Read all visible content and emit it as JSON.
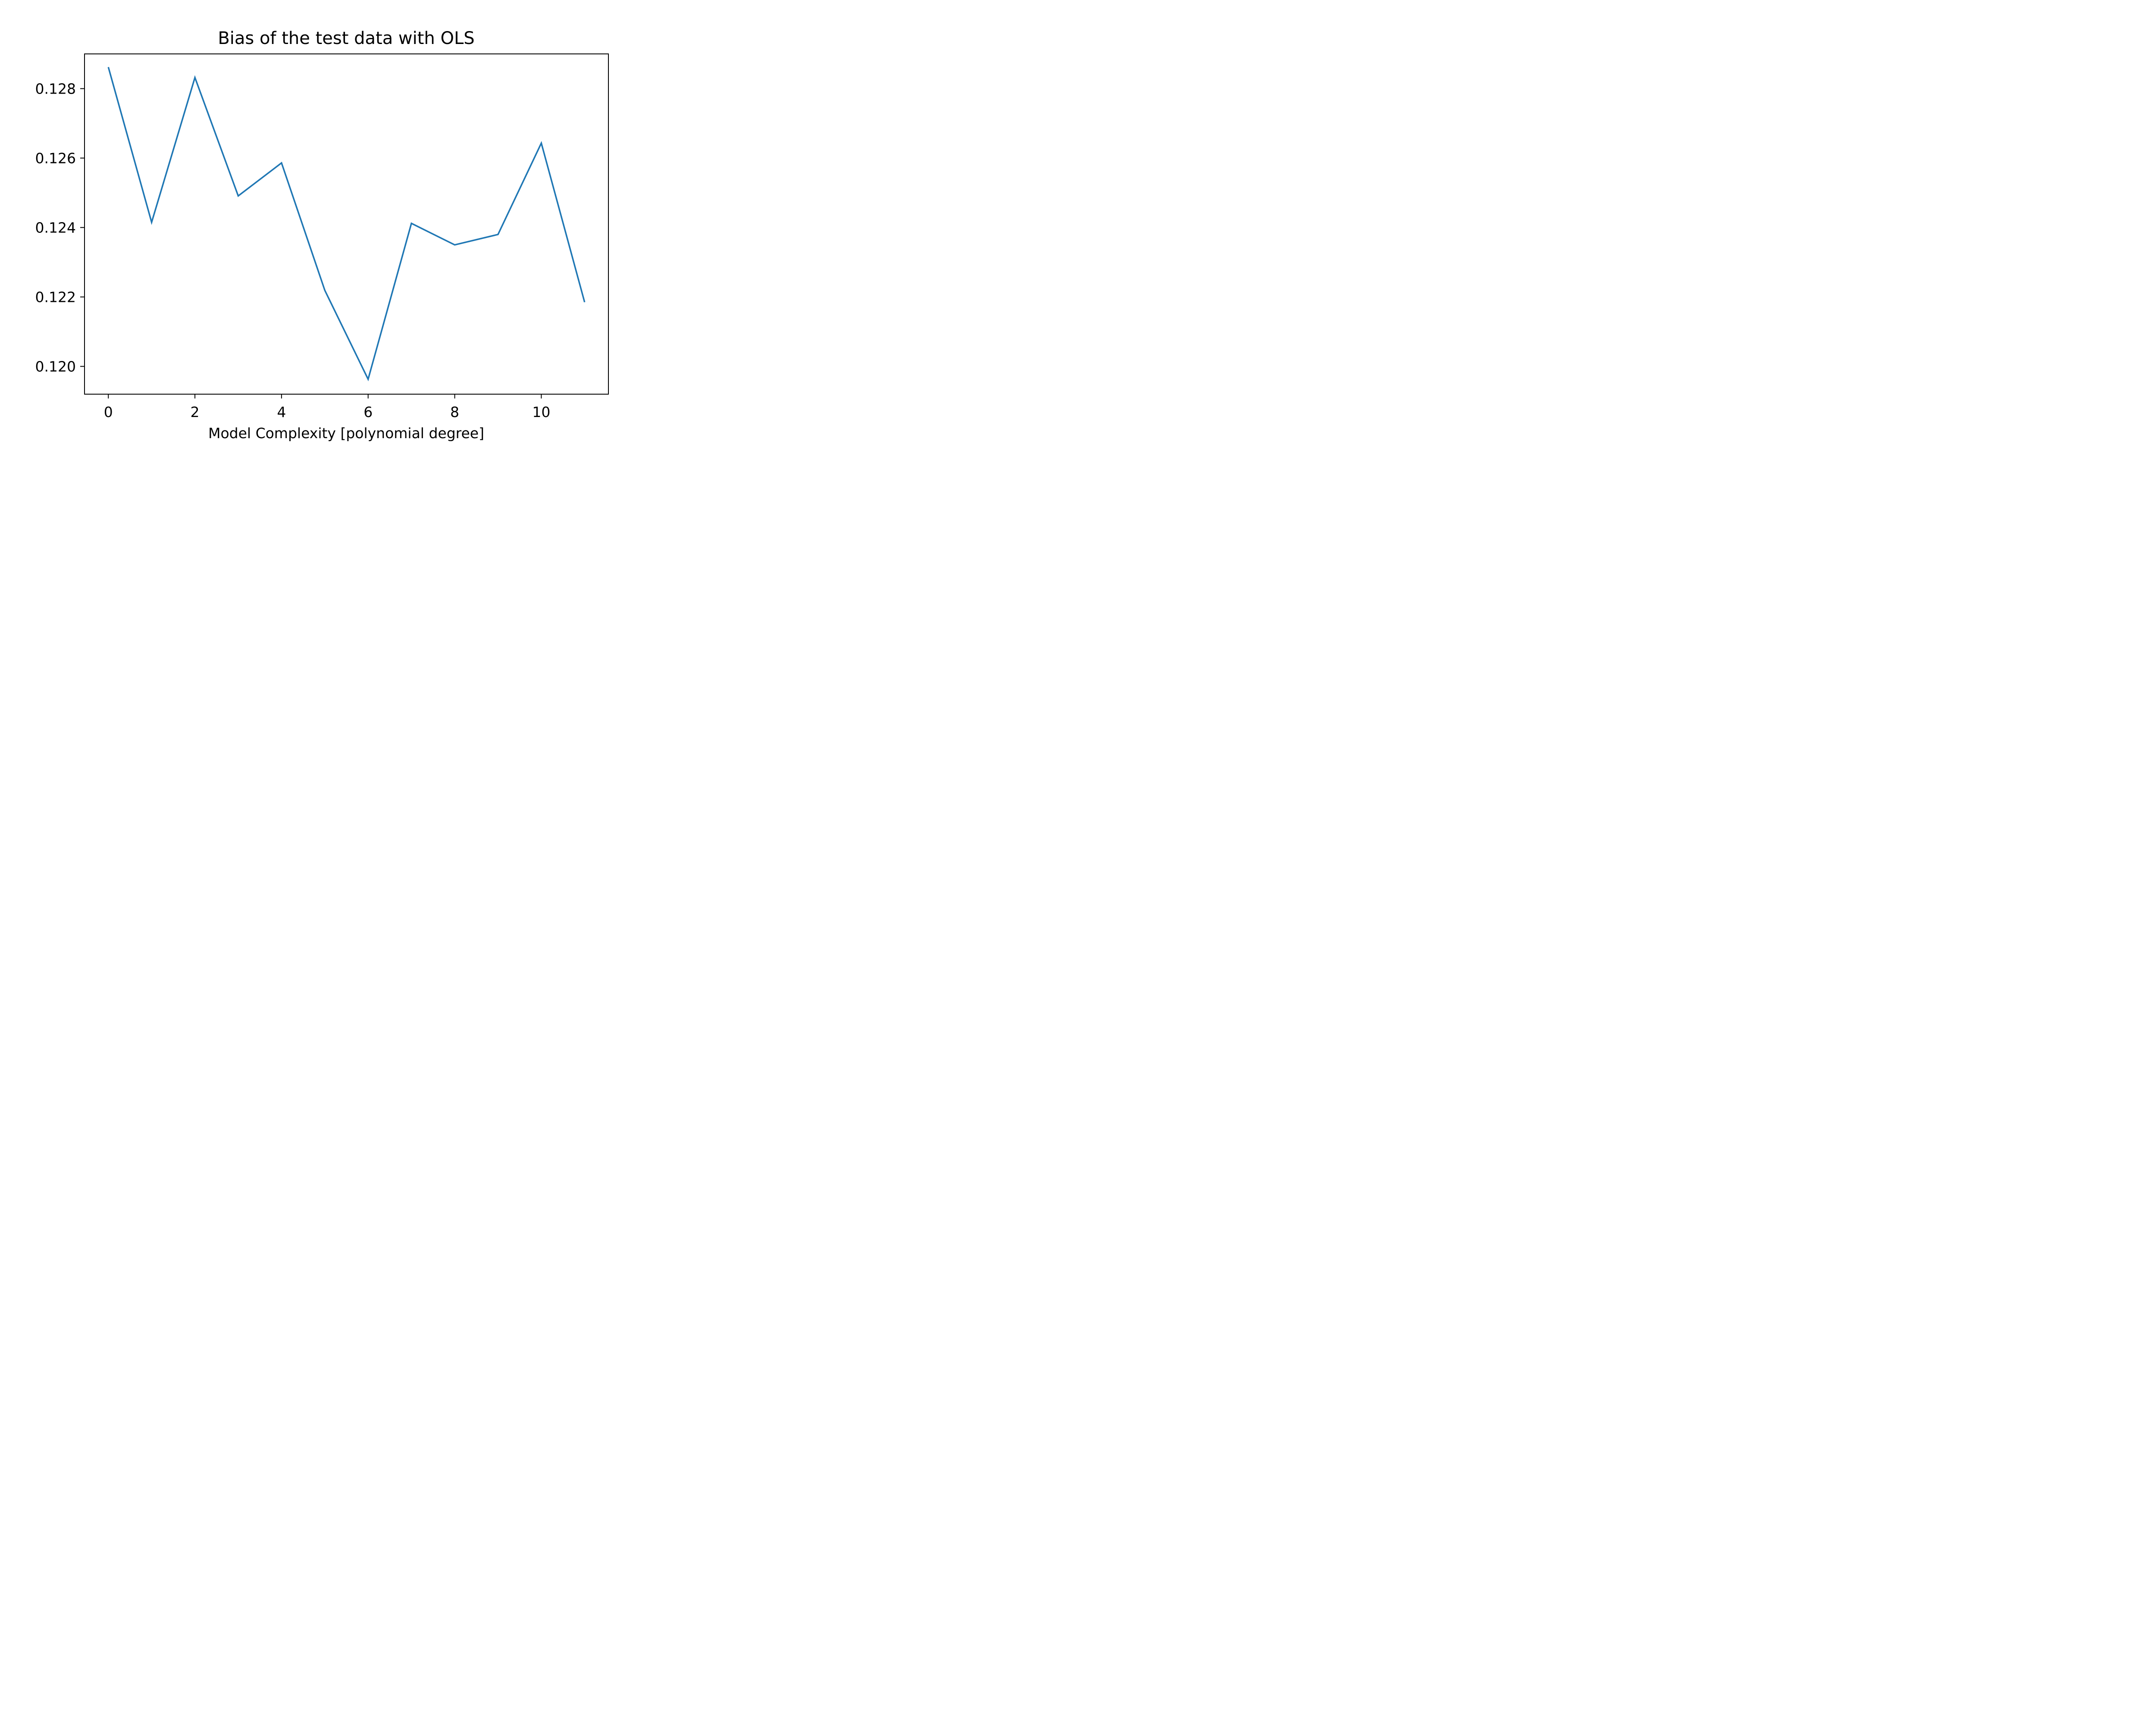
{
  "chart_data": {
    "type": "line",
    "title": "Bias of the test data with OLS",
    "xlabel": "Model Complexity [polynomial degree]",
    "ylabel": "",
    "xlim": [
      -0.55,
      11.55
    ],
    "ylim": [
      0.1192,
      0.129
    ],
    "xticks": [
      0,
      2,
      4,
      6,
      8,
      10
    ],
    "xtick_labels": [
      "0",
      "2",
      "4",
      "6",
      "8",
      "10"
    ],
    "yticks": [
      0.12,
      0.122,
      0.124,
      0.126,
      0.128
    ],
    "ytick_labels": [
      "0.120",
      "0.122",
      "0.124",
      "0.126",
      "0.128"
    ],
    "grid": false,
    "legend": "none",
    "series": [
      {
        "color": "#1f77b4",
        "x": [
          0,
          1,
          2,
          3,
          4,
          5,
          6,
          7,
          8,
          9,
          10,
          11
        ],
        "values": [
          0.12862,
          0.12415,
          0.12832,
          0.12491,
          0.12586,
          0.12219,
          0.11963,
          0.12412,
          0.1235,
          0.1238,
          0.12643,
          0.12185
        ]
      }
    ]
  }
}
